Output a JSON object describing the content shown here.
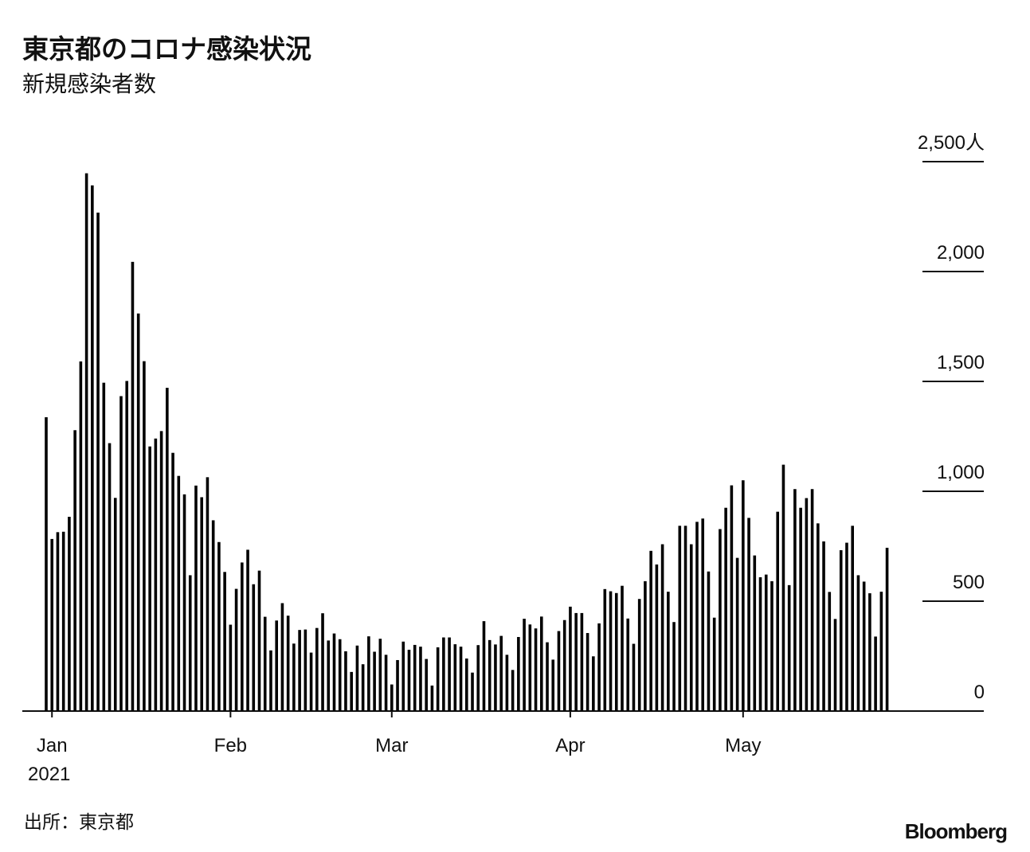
{
  "chart_data": {
    "type": "bar",
    "title": "東京都のコロナ感染状況",
    "subtitle": "新規感染者数",
    "source": "出所：東京都",
    "brand": "Bloomberg",
    "year_label": "2021",
    "color": "#000000",
    "categories": [
      null,
      "Jan",
      null,
      null,
      null,
      null,
      null,
      null,
      null,
      null,
      null,
      null,
      null,
      null,
      null,
      null,
      null,
      null,
      null,
      null,
      null,
      null,
      null,
      null,
      null,
      null,
      null,
      null,
      null,
      null,
      null,
      null,
      "Feb",
      null,
      null,
      null,
      null,
      null,
      null,
      null,
      null,
      null,
      null,
      null,
      null,
      null,
      null,
      null,
      null,
      null,
      null,
      null,
      null,
      null,
      null,
      null,
      null,
      null,
      null,
      null,
      "Mar",
      null,
      null,
      null,
      null,
      null,
      null,
      null,
      null,
      null,
      null,
      null,
      null,
      null,
      null,
      null,
      null,
      null,
      null,
      null,
      null,
      null,
      null,
      null,
      null,
      null,
      null,
      null,
      null,
      null,
      null,
      "Apr",
      null,
      null,
      null,
      null,
      null,
      null,
      null,
      null,
      null,
      null,
      null,
      null,
      null,
      null,
      null,
      null,
      null,
      null,
      null,
      null,
      null,
      null,
      null,
      null,
      null,
      null,
      null,
      null,
      null,
      "May",
      null,
      null,
      null,
      null,
      null,
      null,
      null,
      null,
      null,
      null,
      null,
      null,
      null,
      null,
      null,
      null,
      null,
      null,
      null,
      null,
      null,
      null,
      null,
      null,
      null
    ],
    "values": [
      1337,
      783,
      814,
      816,
      884,
      1278,
      1591,
      2447,
      2392,
      2268,
      1494,
      1219,
      970,
      1433,
      1502,
      2044,
      1809,
      1592,
      1204,
      1240,
      1274,
      1471,
      1175,
      1070,
      986,
      618,
      1026,
      973,
      1064,
      868,
      769,
      633,
      393,
      556,
      676,
      734,
      577,
      639,
      429,
      276,
      412,
      491,
      434,
      307,
      369,
      371,
      266,
      378,
      445,
      321,
      353,
      327,
      272,
      178,
      298,
      213,
      340,
      270,
      329,
      256,
      121,
      232,
      316,
      279,
      301,
      293,
      237,
      116,
      290,
      335,
      335,
      304,
      293,
      239,
      175,
      300,
      409,
      323,
      303,
      342,
      256,
      187,
      337,
      420,
      394,
      376,
      430,
      313,
      234,
      364,
      414,
      475,
      446,
      446,
      355,
      249,
      399,
      555,
      545,
      537,
      570,
      421,
      306,
      510,
      591,
      729,
      667,
      759,
      543,
      405,
      843,
      843,
      759,
      861,
      876,
      635,
      425,
      828,
      925,
      1027,
      697,
      1050,
      879,
      708,
      609,
      621,
      591,
      907,
      1121,
      573,
      1010,
      925,
      969,
      1010,
      854,
      772,
      542,
      419,
      732,
      766,
      843,
      618,
      589,
      536,
      339,
      543,
      743
    ],
    "ylim": [
      0,
      2500
    ],
    "yticks": [
      0,
      500,
      {
        "value": 1000,
        "label": "1,000"
      },
      {
        "value": 1500,
        "label": "1,500"
      },
      {
        "value": 2000,
        "label": "2,000"
      },
      {
        "value": 2500,
        "label": "2,500人"
      }
    ]
  }
}
